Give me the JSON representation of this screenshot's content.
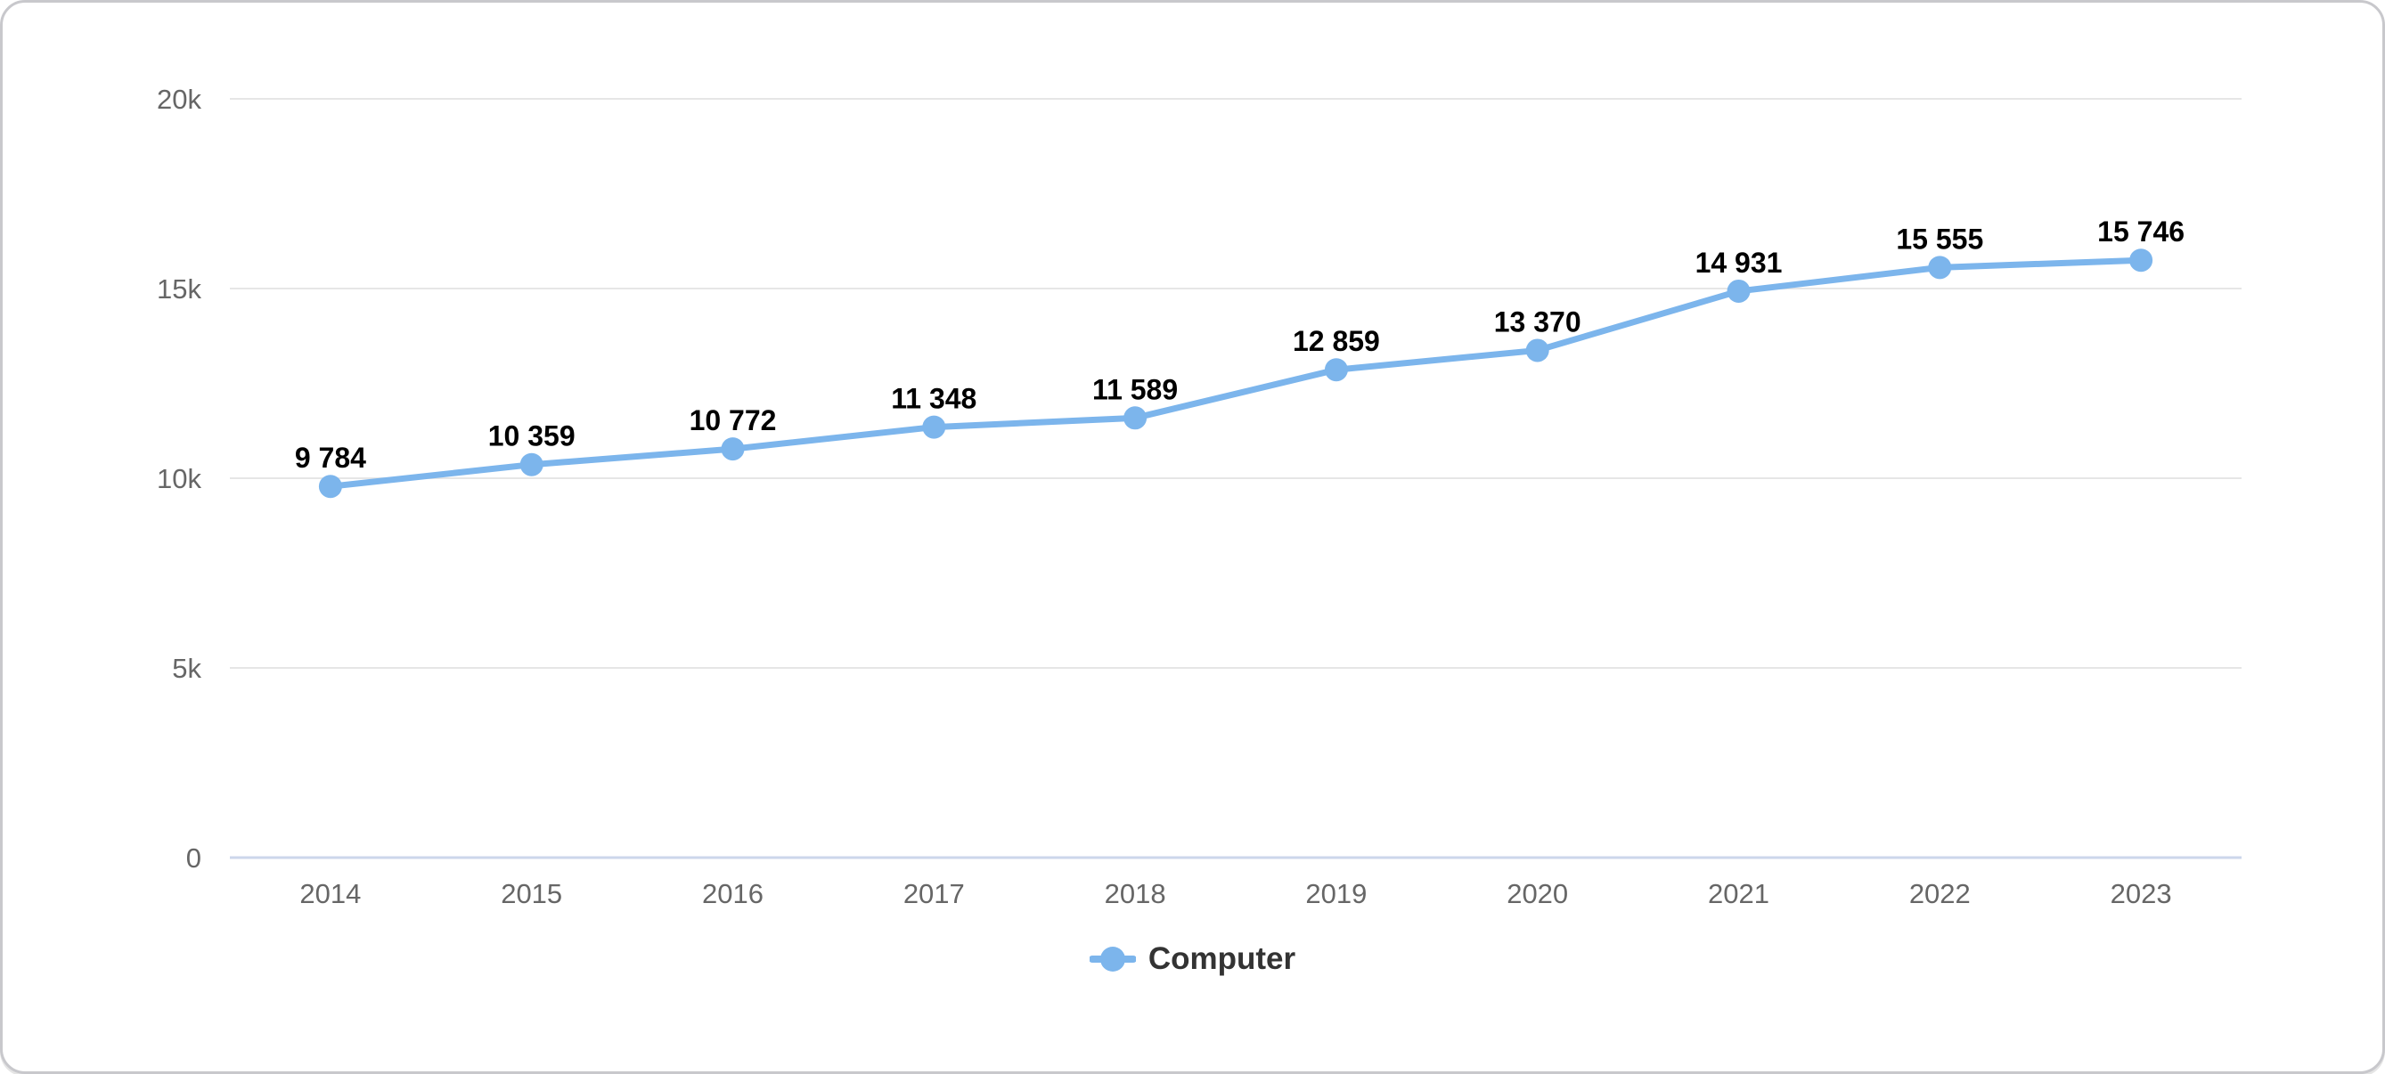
{
  "chart_data": {
    "type": "line",
    "title": "",
    "xlabel": "",
    "ylabel": "",
    "categories": [
      "2014",
      "2015",
      "2016",
      "2017",
      "2018",
      "2019",
      "2020",
      "2021",
      "2022",
      "2023"
    ],
    "series": [
      {
        "name": "Computer",
        "color": "#7cb5ec",
        "values": [
          9784,
          10359,
          10772,
          11348,
          11589,
          12859,
          13370,
          14931,
          15555,
          15746
        ],
        "data_labels": [
          "9 784",
          "10 359",
          "10 772",
          "11 348",
          "11 589",
          "12 859",
          "13 370",
          "14 931",
          "15 555",
          "15 746"
        ]
      }
    ],
    "ylim": [
      0,
      20000
    ],
    "yticks": [
      {
        "value": 0,
        "label": "0"
      },
      {
        "value": 5000,
        "label": "5k"
      },
      {
        "value": 10000,
        "label": "10k"
      },
      {
        "value": 15000,
        "label": "15k"
      },
      {
        "value": 20000,
        "label": "20k"
      }
    ],
    "grid": "horizontal",
    "legend_position": "bottom-center",
    "colors": {
      "grid_line": "#e6e6e6",
      "axis_line": "#ccd6eb",
      "tick_label": "#666666",
      "data_label": "#000000",
      "legend_text": "#333333",
      "card_border": "#c8c8cc",
      "background": "#ffffff"
    }
  }
}
